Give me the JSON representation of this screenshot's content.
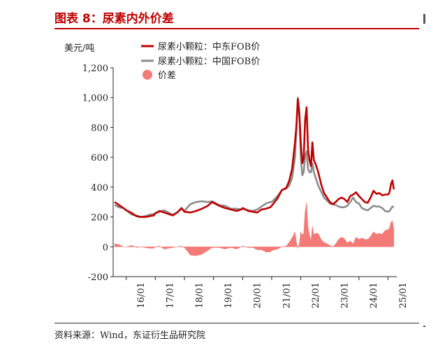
{
  "header": {
    "title": "图表 8：尿素内外价差"
  },
  "footer": {
    "source": "资料来源：Wind，东证衍生品研究院"
  },
  "chart_data": {
    "type": "line",
    "title": "图表 8：尿素内外价差",
    "ylabel": "美元/吨",
    "xlabel": "",
    "ylim": [
      -200,
      1200
    ],
    "yticks": [
      -200,
      0,
      200,
      400,
      600,
      800,
      1000,
      1200
    ],
    "ytick_labels": [
      "-200",
      "0",
      "200",
      "400",
      "600",
      "800",
      "1,000",
      "1,200"
    ],
    "xticks": [
      "16/01",
      "17/01",
      "18/01",
      "19/01",
      "20/01",
      "21/01",
      "22/01",
      "23/01",
      "24/01",
      "25/01"
    ],
    "grid": false,
    "legend": "top-left",
    "series": [
      {
        "name": "尿素小颗粒：中东FOB价",
        "type": "line",
        "color": "#c00000",
        "x": [
          2015.6,
          2015.75,
          2015.9,
          2016.0,
          2016.2,
          2016.35,
          2016.5,
          2016.65,
          2016.8,
          2016.95,
          2017.0,
          2017.15,
          2017.3,
          2017.45,
          2017.6,
          2017.75,
          2017.9,
          2018.0,
          2018.2,
          2018.4,
          2018.6,
          2018.8,
          2018.95,
          2019.0,
          2019.2,
          2019.4,
          2019.6,
          2019.8,
          2019.95,
          2020.0,
          2020.2,
          2020.35,
          2020.5,
          2020.65,
          2020.8,
          2020.95,
          2021.0,
          2021.2,
          2021.35,
          2021.5,
          2021.6,
          2021.7,
          2021.8,
          2021.85,
          2021.9,
          2021.95,
          2022.0,
          2022.05,
          2022.1,
          2022.15,
          2022.2,
          2022.25,
          2022.3,
          2022.35,
          2022.4,
          2022.45,
          2022.5,
          2022.6,
          2022.7,
          2022.8,
          2022.9,
          2023.0,
          2023.1,
          2023.2,
          2023.3,
          2023.4,
          2023.5,
          2023.6,
          2023.7,
          2023.8,
          2023.9,
          2024.0,
          2024.1,
          2024.2,
          2024.3,
          2024.4,
          2024.5,
          2024.6,
          2024.7,
          2024.8,
          2024.9,
          2025.0,
          2025.05,
          2025.1,
          2025.15,
          2025.2
        ],
        "y": [
          300,
          280,
          260,
          245,
          225,
          205,
          200,
          200,
          205,
          210,
          225,
          240,
          230,
          220,
          210,
          230,
          260,
          235,
          230,
          240,
          255,
          275,
          300,
          295,
          275,
          260,
          250,
          240,
          250,
          260,
          240,
          235,
          230,
          250,
          255,
          265,
          275,
          325,
          380,
          395,
          440,
          520,
          700,
          810,
          990,
          900,
          700,
          560,
          590,
          850,
          935,
          650,
          580,
          540,
          700,
          580,
          560,
          500,
          420,
          360,
          330,
          300,
          285,
          300,
          320,
          330,
          320,
          300,
          340,
          350,
          365,
          340,
          320,
          300,
          295,
          330,
          375,
          355,
          360,
          345,
          350,
          350,
          365,
          420,
          445,
          385
        ]
      },
      {
        "name": "尿素小颗粒：中国FOB价",
        "type": "line",
        "color": "#8c8c8c",
        "x": [
          2015.6,
          2015.75,
          2015.9,
          2016.0,
          2016.2,
          2016.35,
          2016.5,
          2016.65,
          2016.8,
          2016.95,
          2017.0,
          2017.15,
          2017.3,
          2017.45,
          2017.6,
          2017.75,
          2017.9,
          2018.0,
          2018.2,
          2018.4,
          2018.6,
          2018.8,
          2018.95,
          2019.0,
          2019.2,
          2019.4,
          2019.6,
          2019.8,
          2019.95,
          2020.0,
          2020.2,
          2020.35,
          2020.5,
          2020.65,
          2020.8,
          2020.95,
          2021.0,
          2021.2,
          2021.35,
          2021.5,
          2021.6,
          2021.7,
          2021.8,
          2021.85,
          2021.9,
          2021.95,
          2022.0,
          2022.05,
          2022.1,
          2022.15,
          2022.2,
          2022.25,
          2022.3,
          2022.35,
          2022.4,
          2022.45,
          2022.5,
          2022.6,
          2022.7,
          2022.8,
          2022.9,
          2023.0,
          2023.1,
          2023.2,
          2023.3,
          2023.4,
          2023.5,
          2023.6,
          2023.7,
          2023.8,
          2023.9,
          2024.0,
          2024.1,
          2024.2,
          2024.3,
          2024.4,
          2024.5,
          2024.6,
          2024.7,
          2024.8,
          2024.9,
          2025.0,
          2025.05,
          2025.1,
          2025.15,
          2025.2
        ],
        "y": [
          280,
          265,
          260,
          245,
          215,
          210,
          200,
          205,
          215,
          220,
          225,
          235,
          245,
          230,
          215,
          230,
          255,
          240,
          285,
          300,
          305,
          300,
          305,
          300,
          280,
          275,
          255,
          255,
          250,
          255,
          245,
          240,
          250,
          270,
          290,
          300,
          300,
          340,
          380,
          390,
          410,
          460,
          600,
          780,
          1000,
          880,
          600,
          480,
          500,
          610,
          640,
          520,
          500,
          500,
          560,
          500,
          470,
          410,
          370,
          330,
          310,
          290,
          285,
          280,
          270,
          265,
          265,
          275,
          300,
          330,
          300,
          290,
          260,
          250,
          245,
          260,
          275,
          270,
          270,
          260,
          240,
          235,
          240,
          255,
          270,
          265
        ]
      },
      {
        "name": "价差",
        "type": "area",
        "color": "#f47a78",
        "x": [
          2015.6,
          2015.75,
          2015.9,
          2016.0,
          2016.2,
          2016.35,
          2016.5,
          2016.65,
          2016.8,
          2016.95,
          2017.0,
          2017.15,
          2017.3,
          2017.45,
          2017.6,
          2017.75,
          2017.9,
          2018.0,
          2018.2,
          2018.4,
          2018.6,
          2018.8,
          2018.95,
          2019.0,
          2019.2,
          2019.4,
          2019.6,
          2019.8,
          2019.95,
          2020.0,
          2020.2,
          2020.35,
          2020.5,
          2020.65,
          2020.8,
          2020.95,
          2021.0,
          2021.2,
          2021.35,
          2021.5,
          2021.6,
          2021.7,
          2021.8,
          2021.85,
          2021.9,
          2021.95,
          2022.0,
          2022.05,
          2022.1,
          2022.15,
          2022.2,
          2022.25,
          2022.3,
          2022.35,
          2022.4,
          2022.45,
          2022.5,
          2022.6,
          2022.7,
          2022.8,
          2022.9,
          2023.0,
          2023.1,
          2023.2,
          2023.3,
          2023.4,
          2023.5,
          2023.6,
          2023.7,
          2023.8,
          2023.9,
          2024.0,
          2024.1,
          2024.2,
          2024.3,
          2024.4,
          2024.5,
          2024.6,
          2024.7,
          2024.8,
          2024.9,
          2025.0,
          2025.05,
          2025.1,
          2025.15,
          2025.2
        ],
        "y": [
          20,
          15,
          0,
          0,
          10,
          -5,
          0,
          -5,
          -10,
          -10,
          0,
          5,
          -15,
          -10,
          -5,
          0,
          5,
          -5,
          -55,
          -60,
          -50,
          -25,
          -5,
          -5,
          -5,
          -15,
          -5,
          -15,
          0,
          5,
          -5,
          -5,
          -20,
          -20,
          -35,
          -35,
          -25,
          -15,
          0,
          5,
          30,
          60,
          100,
          30,
          -10,
          20,
          100,
          80,
          90,
          240,
          295,
          130,
          80,
          40,
          140,
          80,
          90,
          90,
          50,
          30,
          20,
          10,
          0,
          20,
          50,
          65,
          55,
          25,
          40,
          20,
          65,
          50,
          60,
          50,
          50,
          70,
          100,
          85,
          90,
          85,
          110,
          115,
          125,
          165,
          175,
          120
        ]
      }
    ]
  }
}
